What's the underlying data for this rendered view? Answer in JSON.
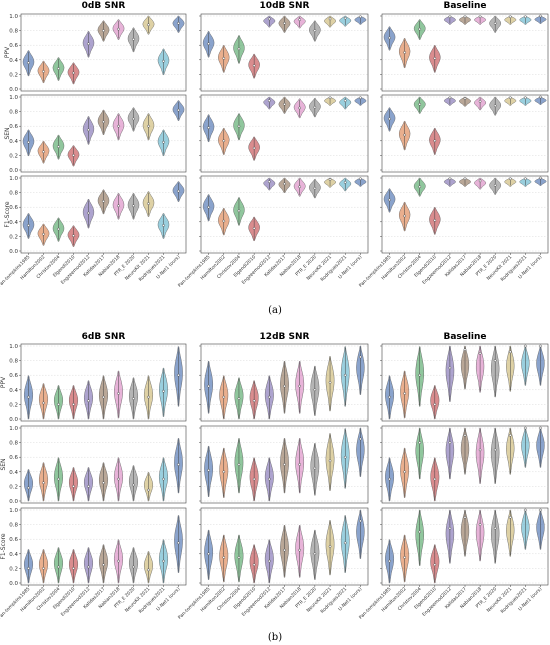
{
  "figure": {
    "part_a_label": "(a)",
    "part_b_label": "(b)"
  },
  "colors": [
    "#4c72b0",
    "#dd8452",
    "#55a868",
    "#c44e52",
    "#8172b3",
    "#937860",
    "#da8bc3",
    "#8c8c8c",
    "#ccb974",
    "#64b5cd"
  ],
  "chart_data": [
    {
      "type": "violin",
      "panel": "a",
      "column_titles": [
        "0dB SNR",
        "10dB SNR",
        "Baseline"
      ],
      "row_labels": [
        "PPV",
        "SEN",
        "F1-Score"
      ],
      "ylim": [
        0.0,
        1.0
      ],
      "yticks": [
        "0.0",
        "0.2",
        "0.4",
        "0.6",
        "0.8",
        "1.0"
      ],
      "grid": true,
      "categories": [
        "Pan-tompkins1985",
        "Hamilton2002",
        "Christov2004",
        "Elgendi2010",
        "Engzeemod2012",
        "Kalidas2017",
        "Nabian2018",
        "PTR_E 2020",
        "NeuroKit 2021",
        "Rodrigues2021",
        "U-Net1 (ours)"
      ],
      "medians": {
        "0dB SNR": {
          "PPV": [
            0.36,
            0.24,
            0.28,
            0.22,
            0.62,
            0.8,
            0.82,
            0.68,
            0.88,
            0.38,
            0.9
          ],
          "SEN": [
            0.38,
            0.25,
            0.32,
            0.2,
            0.55,
            0.66,
            0.6,
            0.7,
            0.6,
            0.38,
            0.82
          ],
          "F1-Score": [
            0.35,
            0.23,
            0.3,
            0.21,
            0.52,
            0.68,
            0.62,
            0.62,
            0.65,
            0.35,
            0.82
          ]
        },
        "10dB SNR": {
          "PPV": [
            0.62,
            0.42,
            0.55,
            0.32,
            0.96,
            0.9,
            0.95,
            0.8,
            0.96,
            0.97,
            0.99
          ],
          "SEN": [
            0.58,
            0.4,
            0.6,
            0.3,
            0.95,
            0.9,
            0.85,
            0.86,
            0.99,
            0.95,
            0.99
          ],
          "F1-Score": [
            0.6,
            0.41,
            0.55,
            0.31,
            0.95,
            0.92,
            0.88,
            0.86,
            0.98,
            0.94,
            0.99
          ]
        },
        "Baseline": {
          "PPV": [
            0.7,
            0.5,
            0.82,
            0.42,
            0.99,
            0.99,
            0.99,
            0.9,
            0.99,
            0.99,
            1.0
          ],
          "SEN": [
            0.7,
            0.48,
            0.9,
            0.4,
            0.99,
            0.98,
            0.94,
            0.88,
            0.99,
            0.99,
            1.0
          ],
          "F1-Score": [
            0.7,
            0.48,
            0.88,
            0.42,
            0.99,
            0.99,
            0.96,
            0.9,
            0.99,
            0.99,
            1.0
          ]
        }
      }
    },
    {
      "type": "violin",
      "panel": "b",
      "column_titles": [
        "6dB SNR",
        "12dB SNR",
        "Baseline"
      ],
      "row_labels": [
        "PPV",
        "SEN",
        "F1-Score"
      ],
      "ylim": [
        0.0,
        1.0
      ],
      "yticks": [
        "0.0",
        "0.2",
        "0.4",
        "0.6",
        "0.8",
        "1.0"
      ],
      "grid": true,
      "categories": [
        "Pan-tompkins1985",
        "Hamilton2002",
        "Christov2004",
        "Elgendi2010",
        "Engzeemod2012",
        "Kalidas2017",
        "Nabian2018",
        "PTR_E 2020",
        "NeuroKit 2021",
        "Rodrigues2021",
        "U-Net1 (ours)"
      ],
      "medians": {
        "6dB SNR": {
          "PPV": [
            0.3,
            0.22,
            0.2,
            0.2,
            0.25,
            0.3,
            0.35,
            0.28,
            0.3,
            0.38,
            0.6
          ],
          "SEN": [
            0.18,
            0.25,
            0.3,
            0.2,
            0.2,
            0.25,
            0.3,
            0.22,
            0.15,
            0.3,
            0.5
          ],
          "F1-Score": [
            0.2,
            0.2,
            0.22,
            0.2,
            0.22,
            0.25,
            0.3,
            0.22,
            0.18,
            0.3,
            0.55
          ]
        },
        "12dB SNR": {
          "PPV": [
            0.45,
            0.3,
            0.28,
            0.25,
            0.3,
            0.45,
            0.45,
            0.4,
            0.5,
            0.6,
            0.85
          ],
          "SEN": [
            0.42,
            0.4,
            0.5,
            0.3,
            0.3,
            0.5,
            0.5,
            0.45,
            0.55,
            0.6,
            0.85
          ],
          "F1-Score": [
            0.4,
            0.35,
            0.35,
            0.25,
            0.3,
            0.45,
            0.45,
            0.4,
            0.5,
            0.55,
            0.85
          ]
        },
        "Baseline": {
          "PPV": [
            0.3,
            0.35,
            0.6,
            0.2,
            0.7,
            0.95,
            0.9,
            0.8,
            0.92,
            1.0,
            1.0
          ],
          "SEN": [
            0.3,
            0.4,
            0.8,
            0.3,
            0.8,
            0.9,
            0.7,
            0.7,
            0.9,
            1.0,
            1.0
          ],
          "F1-Score": [
            0.3,
            0.35,
            0.7,
            0.25,
            0.75,
            0.9,
            0.8,
            0.75,
            0.9,
            1.0,
            1.0
          ]
        }
      }
    }
  ]
}
